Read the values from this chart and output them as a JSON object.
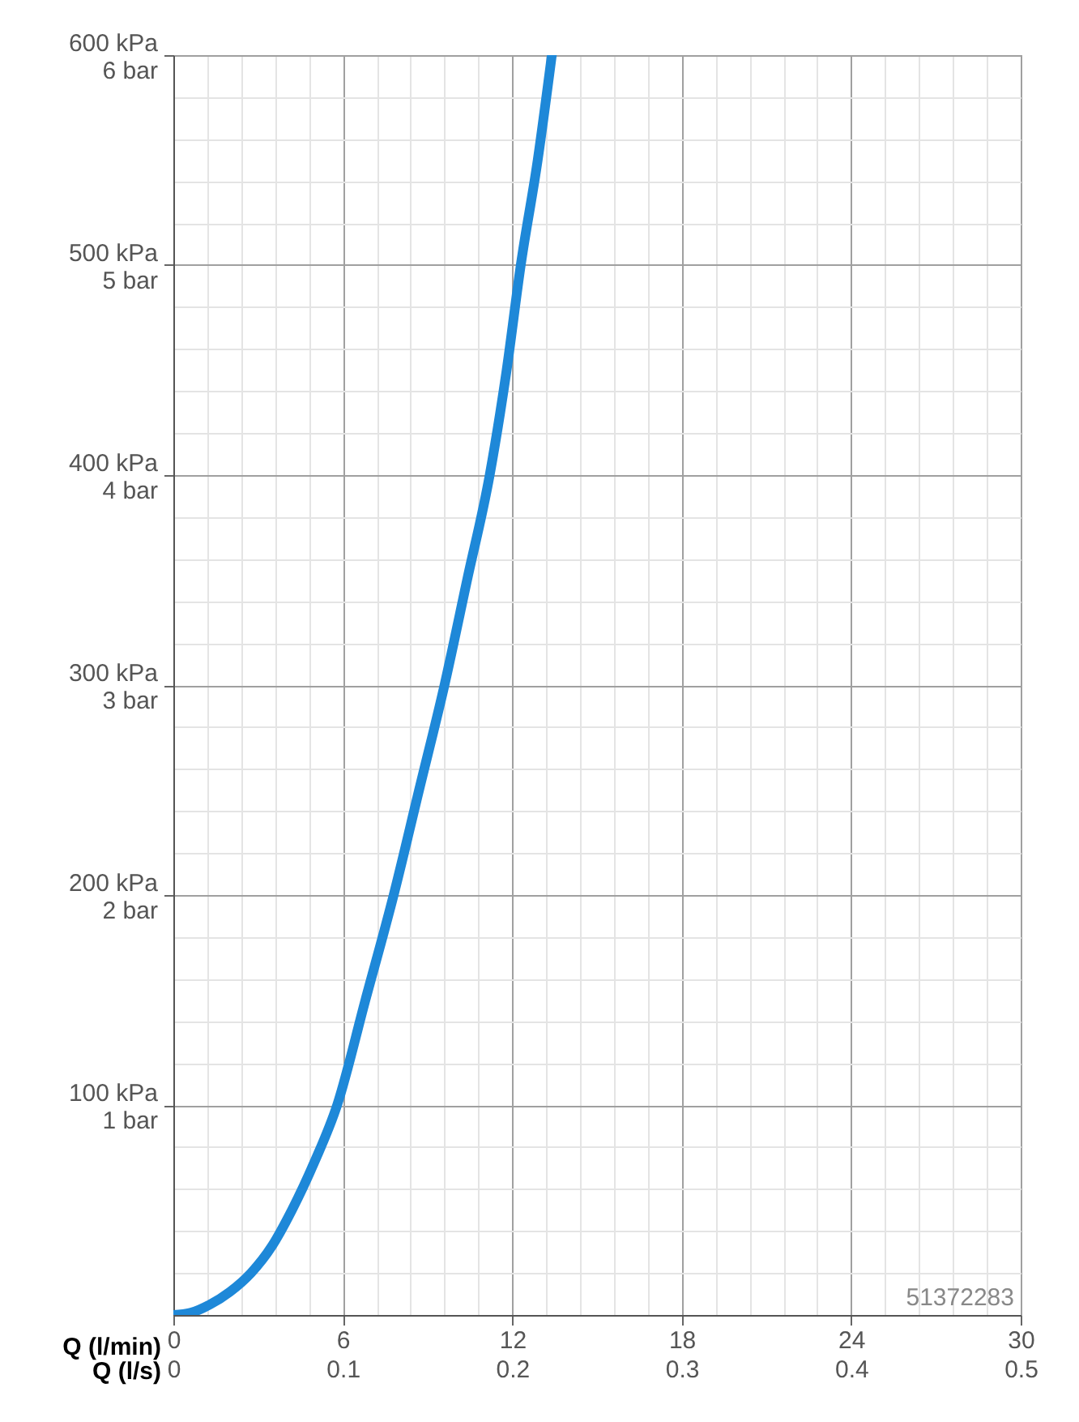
{
  "chart_data": {
    "type": "line",
    "xlabel": "Q (l/min)",
    "x2label": "Q (l/s)",
    "xlim": [
      0,
      30
    ],
    "xticks": [
      0,
      {
        "value": 1.2,
        "label": null
      },
      {
        "value": 2.4,
        "label": null
      },
      {
        "value": 3.6,
        "label": null
      },
      {
        "value": 4.8,
        "label": null
      },
      6,
      {
        "value": 7.2,
        "label": null
      },
      {
        "value": 8.4,
        "label": null
      },
      {
        "value": 9.6,
        "label": null
      },
      {
        "value": 10.8,
        "label": null
      },
      12,
      {
        "value": 13.2,
        "label": null
      },
      {
        "value": 14.4,
        "label": null
      },
      {
        "value": 15.6,
        "label": null
      },
      {
        "value": 16.8,
        "label": null
      },
      18,
      {
        "value": 19.2,
        "label": null
      },
      {
        "value": 20.4,
        "label": null
      },
      {
        "value": 21.6,
        "label": null
      },
      {
        "value": 22.8,
        "label": null
      },
      24,
      {
        "value": 25.2,
        "label": null
      },
      {
        "value": 26.4,
        "label": null
      },
      {
        "value": 27.6,
        "label": null
      },
      {
        "value": 28.8,
        "label": null
      },
      30
    ],
    "x2lim": [
      0,
      0.5
    ],
    "x2ticks": [
      0,
      0.1,
      0.2,
      0.3,
      0.4,
      0.5
    ],
    "ylim": [
      0,
      600
    ],
    "yticks": [
      {
        "value": 0,
        "label": null
      },
      {
        "value": 20,
        "label": null
      },
      {
        "value": 40,
        "label": null
      },
      {
        "value": 60,
        "label": null
      },
      {
        "value": 80,
        "label": null
      },
      {
        "value": 100,
        "label": "100 kPa"
      },
      {
        "value": 120,
        "label": null
      },
      {
        "value": 140,
        "label": null
      },
      {
        "value": 160,
        "label": null
      },
      {
        "value": 180,
        "label": null
      },
      {
        "value": 200,
        "label": "200 kPa"
      },
      {
        "value": 220,
        "label": null
      },
      {
        "value": 240,
        "label": null
      },
      {
        "value": 260,
        "label": null
      },
      {
        "value": 280,
        "label": null
      },
      {
        "value": 300,
        "label": "300 kPa"
      },
      {
        "value": 320,
        "label": null
      },
      {
        "value": 340,
        "label": null
      },
      {
        "value": 360,
        "label": null
      },
      {
        "value": 380,
        "label": null
      },
      {
        "value": 400,
        "label": "400 kPa"
      },
      {
        "value": 420,
        "label": null
      },
      {
        "value": 440,
        "label": null
      },
      {
        "value": 460,
        "label": null
      },
      {
        "value": 480,
        "label": null
      },
      {
        "value": 500,
        "label": "500 kPa"
      },
      {
        "value": 520,
        "label": null
      },
      {
        "value": 540,
        "label": null
      },
      {
        "value": 560,
        "label": null
      },
      {
        "value": 580,
        "label": null
      },
      {
        "value": 600,
        "label": "600 kPa"
      }
    ],
    "y2lim": [
      0,
      6
    ],
    "y2ticks": [
      {
        "value": 1,
        "label": "1 bar"
      },
      {
        "value": 2,
        "label": "2 bar"
      },
      {
        "value": 3,
        "label": "3 bar"
      },
      {
        "value": 4,
        "label": "4 bar"
      },
      {
        "value": 5,
        "label": "5 bar"
      },
      {
        "value": 6,
        "label": "6 bar"
      }
    ],
    "grid": true,
    "annotations": [
      "51372283"
    ],
    "series": [
      {
        "color": "#1e88d8",
        "x": [
          0,
          0.6,
          1.3,
          2,
          2.75,
          3.5,
          4.2,
          5,
          5.8,
          6.8,
          7.8,
          8.7,
          9.6,
          10.4,
          11.2,
          11.8,
          12.3,
          12.9,
          13.4
        ],
        "values": [
          0,
          1,
          5,
          11,
          20,
          33,
          50,
          73,
          100,
          150,
          200,
          250,
          300,
          350,
          400,
          450,
          500,
          550,
          600
        ]
      }
    ]
  }
}
